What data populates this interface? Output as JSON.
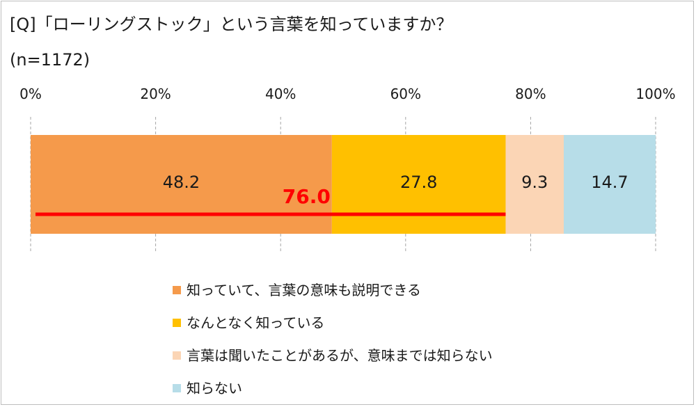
{
  "title": {
    "line1": "[Q]「ローリングストック」という言葉を知っていますか？",
    "line2": "(n=1172)"
  },
  "chart_data": {
    "type": "bar",
    "orientation": "horizontal",
    "stacked": true,
    "x_ticks": [
      "0%",
      "20%",
      "40%",
      "60%",
      "80%",
      "100%"
    ],
    "xlim": [
      0,
      100
    ],
    "grid": true,
    "legend_position": "bottom",
    "series": [
      {
        "name": "知っていて、言葉の意味も説明できる",
        "value": 48.2,
        "label": "48.2",
        "color": "#F59A4B"
      },
      {
        "name": "なんとなく知っている",
        "value": 27.8,
        "label": "27.8",
        "color": "#FFC000"
      },
      {
        "name": "言葉は聞いたことがあるが、意味までは知らない",
        "value": 9.3,
        "label": "9.3",
        "color": "#FBD5B5"
      },
      {
        "name": "知らない",
        "value": 14.7,
        "label": "14.7",
        "color": "#B7DDE8"
      }
    ],
    "annotation": {
      "value": 76.0,
      "label": "76.0",
      "spans_series": [
        0,
        1
      ],
      "color": "#FF0000"
    }
  }
}
